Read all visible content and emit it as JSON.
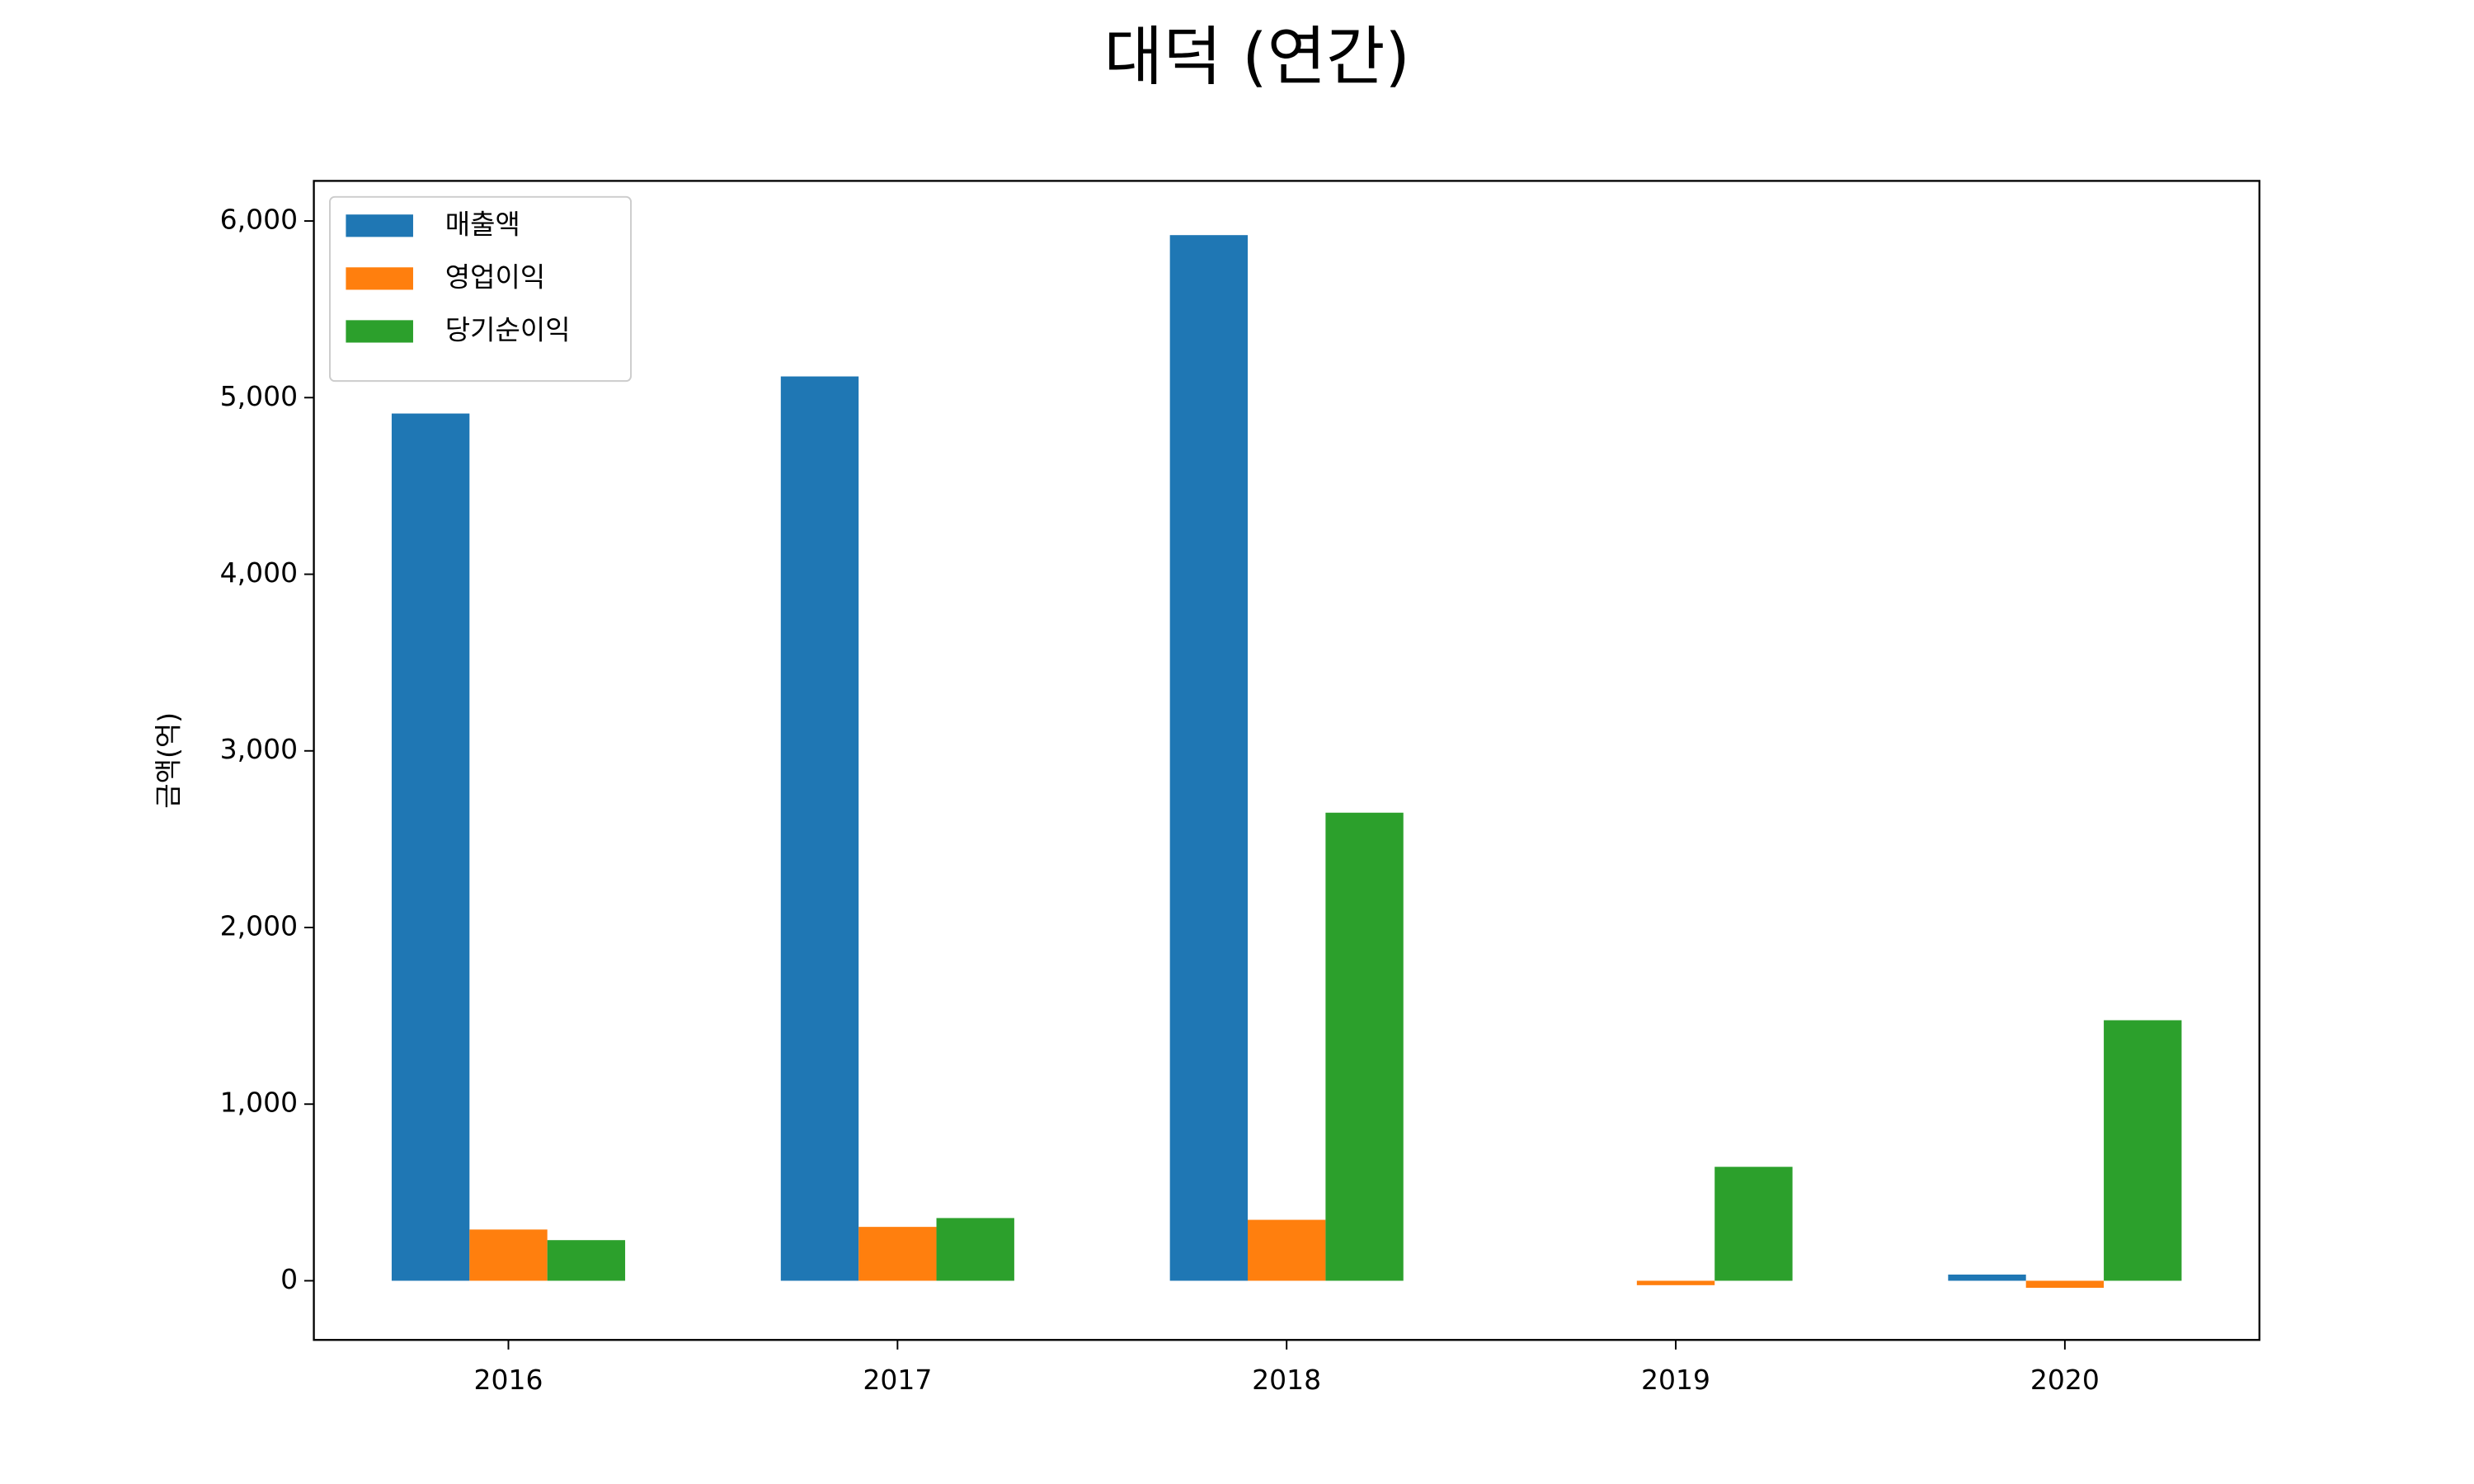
{
  "chart_data": {
    "type": "bar",
    "title": "대덕 (연간)",
    "y_label": "금액(억)",
    "categories": [
      "2016",
      "2017",
      "2018",
      "2019",
      "2020"
    ],
    "series": [
      {
        "name": "매출액",
        "color": "#1f77b4",
        "values": [
          4910,
          5120,
          5920,
          null,
          35
        ]
      },
      {
        "name": "영업이익",
        "color": "#ff7f0e",
        "values": [
          290,
          305,
          345,
          -25,
          -40
        ]
      },
      {
        "name": "당기순이익",
        "color": "#2ca02c",
        "values": [
          230,
          355,
          2650,
          645,
          1475
        ]
      }
    ],
    "ylim": [
      -335,
      6227
    ],
    "yticks": [
      0,
      {
        "value": 1000,
        "label": "1,000"
      },
      {
        "value": 2000,
        "label": "2,000"
      },
      {
        "value": 3000,
        "label": "3,000"
      },
      {
        "value": 4000,
        "label": "4,000"
      },
      {
        "value": 5000,
        "label": "5,000"
      },
      {
        "value": 6000,
        "label": "6,000"
      }
    ],
    "legend": "upper-left",
    "grid": false
  }
}
